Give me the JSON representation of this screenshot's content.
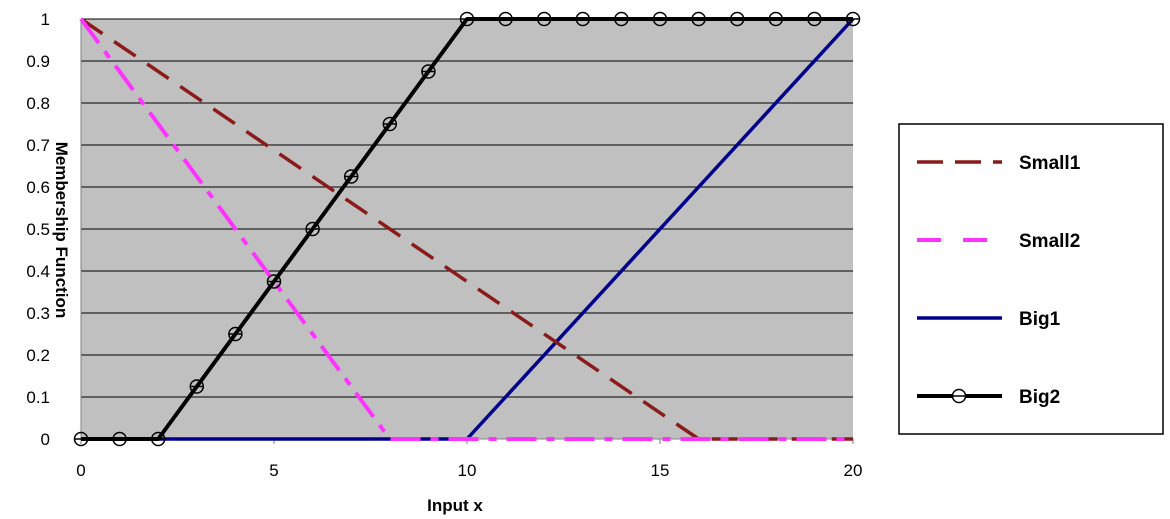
{
  "chart_data": {
    "type": "line",
    "xlabel": "Input x",
    "ylabel": "Membership Function",
    "xlim": [
      0,
      20
    ],
    "ylim": [
      0,
      1
    ],
    "x_ticks": [
      "0",
      "5",
      "10",
      "15",
      "20"
    ],
    "y_ticks": [
      "0",
      "0.1",
      "0.2",
      "0.3",
      "0.4",
      "0.5",
      "0.6",
      "0.7",
      "0.8",
      "0.9",
      "1"
    ],
    "grid": "horizontal",
    "plot_background": "#c0c0c0",
    "legend_position": "right",
    "series": [
      {
        "name": "Small1",
        "color": "#8b1a1a",
        "style": "long-dash",
        "x": [
          0,
          16,
          20
        ],
        "y": [
          1,
          0,
          0
        ]
      },
      {
        "name": "Small2",
        "color": "#ff33ff",
        "style": "dash-dot",
        "x": [
          0,
          8,
          20
        ],
        "y": [
          1,
          0,
          0
        ]
      },
      {
        "name": "Big1",
        "color": "#00008b",
        "style": "solid",
        "x": [
          0,
          10,
          20
        ],
        "y": [
          0,
          0,
          1
        ]
      },
      {
        "name": "Big2",
        "color": "#000000",
        "style": "solid-circle-markers",
        "x": [
          0,
          1,
          2,
          3,
          4,
          5,
          6,
          7,
          8,
          9,
          10,
          11,
          12,
          13,
          14,
          15,
          16,
          17,
          18,
          19,
          20
        ],
        "y": [
          0,
          0,
          0,
          0.125,
          0.25,
          0.375,
          0.5,
          0.625,
          0.75,
          0.875,
          1,
          1,
          1,
          1,
          1,
          1,
          1,
          1,
          1,
          1,
          1
        ]
      }
    ]
  }
}
